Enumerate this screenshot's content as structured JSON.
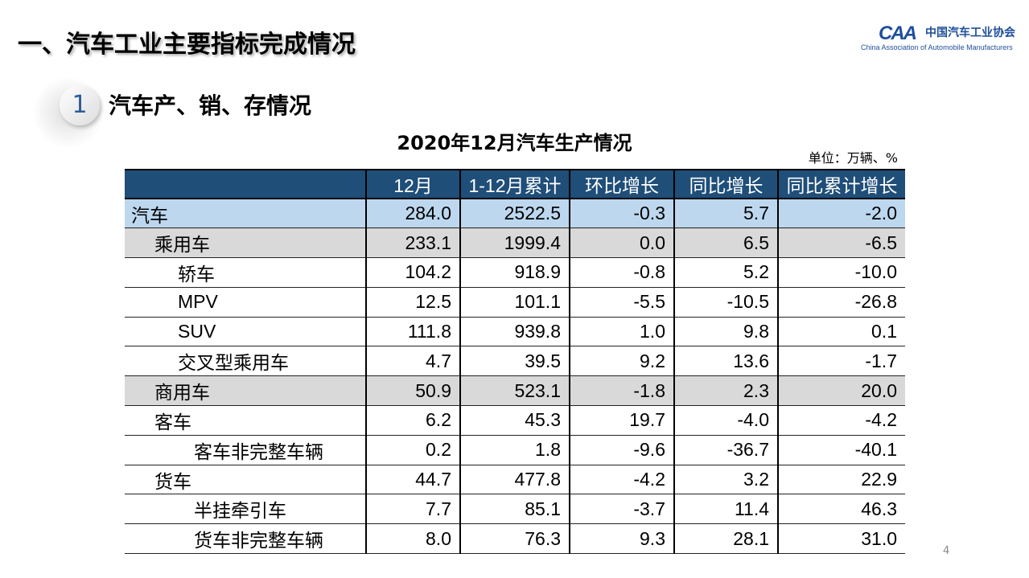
{
  "slide_title": "一、汽车工业主要指标完成情况",
  "logo": {
    "mark": "CAAM",
    "cn": "中国汽车工业协会",
    "en": "China Association of Automobile Manufacturers"
  },
  "section": {
    "number": "1",
    "title": "汽车产、销、存情况"
  },
  "table_title": "2020年12月汽车生产情况",
  "unit": "单位：万辆、%",
  "colors": {
    "header": "#1f4e79",
    "total_row": "#bdd7ee",
    "group_row": "#d9d9d9"
  },
  "columns": [
    "",
    "12月",
    "1-12月累计",
    "环比增长",
    "同比增长",
    "同比累计增长"
  ],
  "rows": [
    {
      "name": "汽车",
      "level": "top",
      "values": [
        "284.0",
        "2522.5",
        "-0.3",
        "5.7",
        "-2.0"
      ]
    },
    {
      "name": "乘用车",
      "level": "grp",
      "values": [
        "233.1",
        "1999.4",
        "0.0",
        "6.5",
        "-6.5"
      ]
    },
    {
      "name": "轿车",
      "level": "l2",
      "values": [
        "104.2",
        "918.9",
        "-0.8",
        "5.2",
        "-10.0"
      ]
    },
    {
      "name": "MPV",
      "level": "l2",
      "values": [
        "12.5",
        "101.1",
        "-5.5",
        "-10.5",
        "-26.8"
      ]
    },
    {
      "name": "SUV",
      "level": "l2",
      "values": [
        "111.8",
        "939.8",
        "1.0",
        "9.8",
        "0.1"
      ]
    },
    {
      "name": "交叉型乘用车",
      "level": "l2",
      "values": [
        "4.7",
        "39.5",
        "9.2",
        "13.6",
        "-1.7"
      ]
    },
    {
      "name": "商用车",
      "level": "grp",
      "values": [
        "50.9",
        "523.1",
        "-1.8",
        "2.3",
        "20.0"
      ]
    },
    {
      "name": "客车",
      "level": "l1b",
      "values": [
        "6.2",
        "45.3",
        "19.7",
        "-4.0",
        "-4.2"
      ]
    },
    {
      "name": "客车非完整车辆",
      "level": "l3",
      "values": [
        "0.2",
        "1.8",
        "-9.6",
        "-36.7",
        "-40.1"
      ]
    },
    {
      "name": "货车",
      "level": "l1b",
      "values": [
        "44.7",
        "477.8",
        "-4.2",
        "3.2",
        "22.9"
      ]
    },
    {
      "name": "半挂牵引车",
      "level": "l3",
      "values": [
        "7.7",
        "85.1",
        "-3.7",
        "11.4",
        "46.3"
      ]
    },
    {
      "name": "货车非完整车辆",
      "level": "l3",
      "values": [
        "8.0",
        "76.3",
        "9.3",
        "28.1",
        "31.0"
      ]
    }
  ],
  "page_number": "4"
}
